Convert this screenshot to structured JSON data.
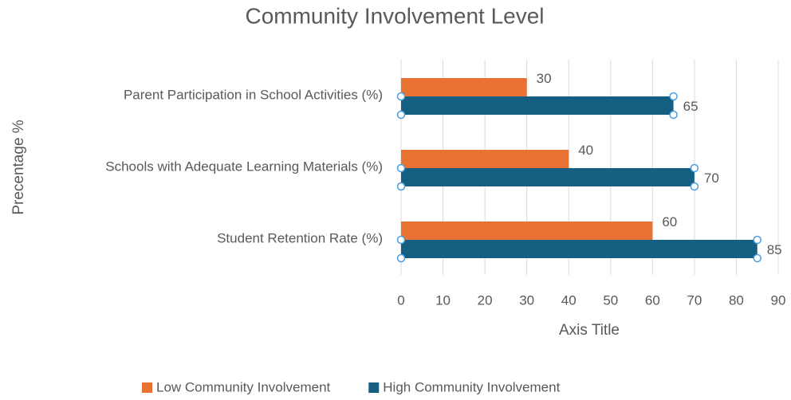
{
  "chart_data": {
    "type": "hbar",
    "title": "Community Involvement Level",
    "y_axis_label": "Precentage %",
    "x_axis_label": "Axis Title",
    "categories": [
      "Parent Participation in School Activities (%)",
      "Schools with Adequate Learning Materials (%)",
      "Student Retention Rate (%)"
    ],
    "series": [
      {
        "name": "Low Community Involvement",
        "color": "#e97132",
        "values": [
          30,
          40,
          60
        ]
      },
      {
        "name": "High Community Involvement",
        "color": "#156082",
        "values": [
          65,
          70,
          85
        ]
      }
    ],
    "xlim": [
      0,
      90
    ],
    "xticks": [
      0,
      10,
      20,
      30,
      40,
      50,
      60,
      70,
      80,
      90
    ],
    "grid": true,
    "legend": "bottom"
  }
}
